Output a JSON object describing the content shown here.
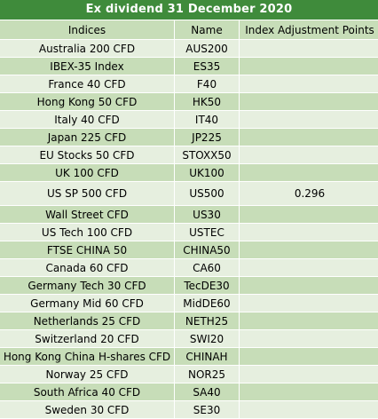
{
  "title": "Ex dividend 31 December 2020",
  "columns": [
    "Indices",
    "Name",
    "Index Adjustment Points"
  ],
  "rows": [
    {
      "index": "Australia 200 CFD",
      "name": "AUS200",
      "points": ""
    },
    {
      "index": "IBEX-35 Index",
      "name": "ES35",
      "points": ""
    },
    {
      "index": "France 40 CFD",
      "name": "F40",
      "points": ""
    },
    {
      "index": "Hong Kong 50 CFD",
      "name": "HK50",
      "points": ""
    },
    {
      "index": "Italy 40 CFD",
      "name": "IT40",
      "points": ""
    },
    {
      "index": "Japan 225 CFD",
      "name": "JP225",
      "points": ""
    },
    {
      "index": "EU Stocks 50 CFD",
      "name": "STOXX50",
      "points": ""
    },
    {
      "index": "UK 100 CFD",
      "name": "UK100",
      "points": ""
    },
    {
      "index": "US SP 500 CFD",
      "name": "US500",
      "points": "0.296"
    },
    {
      "index": "Wall Street CFD",
      "name": "US30",
      "points": ""
    },
    {
      "index": "US Tech 100 CFD",
      "name": "USTEC",
      "points": ""
    },
    {
      "index": "FTSE CHINA 50",
      "name": "CHINA50",
      "points": ""
    },
    {
      "index": "Canada 60 CFD",
      "name": "CA60",
      "points": ""
    },
    {
      "index": "Germany Tech 30 CFD",
      "name": "TecDE30",
      "points": ""
    },
    {
      "index": "Germany Mid 60 CFD",
      "name": "MidDE60",
      "points": ""
    },
    {
      "index": "Netherlands 25 CFD",
      "name": "NETH25",
      "points": ""
    },
    {
      "index": "Switzerland 20 CFD",
      "name": "SWI20",
      "points": ""
    },
    {
      "index": "Hong Kong China H-shares CFD",
      "name": "CHINAH",
      "points": ""
    },
    {
      "index": "Norway 25 CFD",
      "name": "NOR25",
      "points": ""
    },
    {
      "index": "South Africa 40 CFD",
      "name": "SA40",
      "points": ""
    },
    {
      "index": "Sweden 30 CFD",
      "name": "SE30",
      "points": ""
    }
  ],
  "colors": {
    "title_bg": "#3f8b3b",
    "row_dark": "#c7ddb8",
    "row_light": "#e6efdf"
  }
}
